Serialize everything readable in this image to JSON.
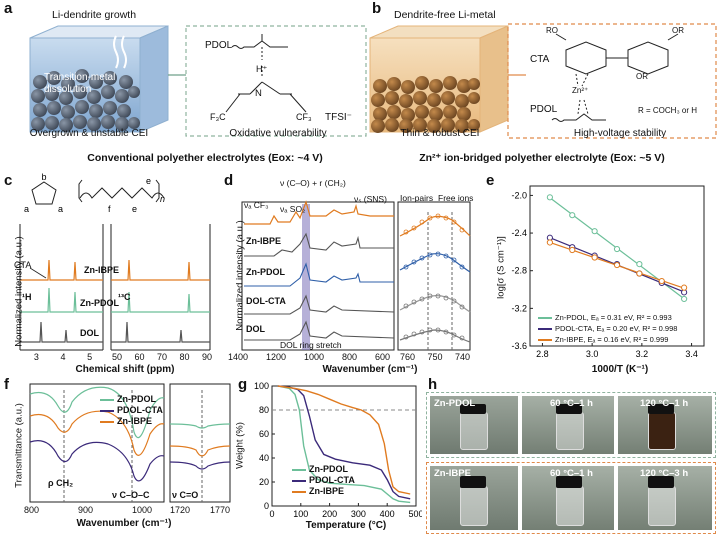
{
  "panels": {
    "a": {
      "label": "a",
      "title": "Li-dendrite growth",
      "arrow_text": "Transition-metal dissolution",
      "cap_left": "Overgrown & unstable CEI",
      "cap_right": "Oxidative vulnerability",
      "pdol": "PDOL",
      "tfsi": "TFSI⁻",
      "bottom_title": "Conventional polyether electrolytes (Eox: ~4 V)"
    },
    "b": {
      "label": "b",
      "title": "Dendrite-free Li-metal",
      "cta": "CTA",
      "pdol": "PDOL",
      "r_def": "R = COCH₃ or H",
      "cap_left": "Thin & robust CEI",
      "cap_right": "High-voltage stability",
      "bottom_title": "Zn²⁺ ion-bridged polyether electrolyte (Eox: ~5 V)"
    },
    "c": {
      "label": "c",
      "ylabel": "Normalized intensity (a.u.)",
      "xlabel": "Chemical shift (ppm)",
      "left_ticks": [
        "3",
        "4",
        "5"
      ],
      "right_ticks": [
        "50",
        "60",
        "70",
        "80",
        "90"
      ],
      "traces": [
        "Zn-IBPE",
        "Zn-PDOL",
        "DOL"
      ],
      "h": "¹H",
      "c13": "¹³C",
      "cta": "CTA",
      "peak_labels": [
        "a",
        "b",
        "e",
        "f"
      ]
    },
    "d": {
      "label": "d",
      "ylabel": "Normalized intensity (a.u.)",
      "xlabel": "Wavenumber (cm⁻¹)",
      "ticks_left": [
        "1400",
        "1200",
        "1000",
        "800",
        "600"
      ],
      "ticks_right": [
        "760",
        "750",
        "740"
      ],
      "traces": [
        "Zn-IBPE",
        "Zn-PDOL",
        "DOL-CTA",
        "DOL"
      ],
      "annot_cf3": "νₐ CF₃",
      "annot_so2": "νₐ SO₂",
      "annot_co": "ν (C–O) + r (CH₂)",
      "annot_sns": "νₛ (SNS)",
      "ring": "DOL ring stretch",
      "ion_pairs": "Ion-pairs",
      "free_ions": "Free ions"
    },
    "e": {
      "label": "e",
      "ylabel": "log[σ (S cm⁻¹)]",
      "xlabel": "1000/T (K⁻¹)",
      "legend": [
        "Zn-PDOL, Eₐ = 0.31 eV, R² = 0.993",
        "PDOL-CTA, Eₐ = 0.20 eV, R² = 0.998",
        "Zn-IBPE, Eₐ = 0.16 eV, R² = 0.999"
      ]
    },
    "f": {
      "label": "f",
      "ylabel": "Transmittance (a.u.)",
      "xlabel": "Wavenumber (cm⁻¹)",
      "ticks_left": [
        "800",
        "900",
        "1000"
      ],
      "ticks_right": [
        "1720",
        "1770"
      ],
      "legend": [
        "Zn-PDOL",
        "PDOL-CTA",
        "Zn-IBPE"
      ],
      "annot_ch2": "ρ CH₂",
      "annot_coc": "ν C–O–C",
      "annot_co": "ν C=O"
    },
    "g": {
      "label": "g",
      "ylabel": "Weight (%)",
      "xlabel": "Temperature (°C)",
      "legend": [
        "Zn-PDOL",
        "PDOL-CTA",
        "Zn-IBPE"
      ]
    },
    "h": {
      "label": "h",
      "top": [
        "Zn-PDOL",
        "60 °C–1 h",
        "120 °C–1 h"
      ],
      "bottom": [
        "Zn-IBPE",
        "60 °C–1 h",
        "120 °C–3 h"
      ]
    }
  },
  "chart_data": [
    {
      "type": "scatter",
      "panel": "e",
      "xlabel": "1000/T (K⁻¹)",
      "ylabel": "log[σ (S cm⁻¹)]",
      "xlim": [
        2.75,
        3.45
      ],
      "ylim": [
        -3.6,
        -1.9
      ],
      "xticks": [
        2.8,
        3.0,
        3.2,
        3.4
      ],
      "yticks": [
        -2.0,
        -2.4,
        -2.8,
        -3.2,
        -3.6
      ],
      "series": [
        {
          "name": "Zn-PDOL",
          "color": "#6cbf99",
          "x": [
            2.83,
            2.92,
            3.01,
            3.1,
            3.19,
            3.28,
            3.37
          ],
          "y": [
            -2.02,
            -2.21,
            -2.38,
            -2.57,
            -2.73,
            -2.92,
            -3.1
          ]
        },
        {
          "name": "PDOL-CTA",
          "color": "#3b2a7a",
          "x": [
            2.83,
            2.92,
            3.01,
            3.1,
            3.19,
            3.28,
            3.37
          ],
          "y": [
            -2.45,
            -2.55,
            -2.64,
            -2.73,
            -2.83,
            -2.93,
            -3.03
          ]
        },
        {
          "name": "Zn-IBPE",
          "color": "#e07b20",
          "x": [
            2.83,
            2.92,
            3.01,
            3.1,
            3.19,
            3.28,
            3.37
          ],
          "y": [
            -2.5,
            -2.58,
            -2.66,
            -2.74,
            -2.83,
            -2.91,
            -2.98
          ]
        }
      ]
    },
    {
      "type": "line",
      "panel": "g",
      "xlabel": "Temperature (°C)",
      "ylabel": "Weight (%)",
      "xlim": [
        0,
        500
      ],
      "ylim": [
        0,
        100
      ],
      "xticks": [
        0,
        100,
        200,
        300,
        400,
        500
      ],
      "yticks": [
        0,
        20,
        40,
        60,
        80,
        100
      ],
      "series": [
        {
          "name": "Zn-PDOL",
          "color": "#6cbf99",
          "x": [
            20,
            60,
            80,
            95,
            110,
            130,
            160,
            200,
            260,
            320,
            380,
            400,
            420,
            440,
            480
          ],
          "y": [
            100,
            98,
            93,
            80,
            50,
            30,
            22,
            19,
            18,
            17,
            14,
            10,
            6,
            4,
            3
          ]
        },
        {
          "name": "PDOL-CTA",
          "color": "#3b2a7a",
          "x": [
            20,
            60,
            90,
            110,
            130,
            150,
            180,
            220,
            280,
            340,
            380,
            400,
            420,
            440,
            480
          ],
          "y": [
            100,
            99,
            97,
            92,
            75,
            55,
            43,
            39,
            36,
            34,
            30,
            22,
            12,
            8,
            6
          ]
        },
        {
          "name": "Zn-IBPE",
          "color": "#e07b20",
          "x": [
            20,
            80,
            120,
            160,
            200,
            240,
            280,
            310,
            340,
            370,
            390,
            405,
            420,
            440,
            480
          ],
          "y": [
            100,
            98,
            96,
            93,
            89,
            85,
            82,
            80,
            76,
            68,
            52,
            30,
            16,
            12,
            10
          ]
        }
      ]
    }
  ]
}
